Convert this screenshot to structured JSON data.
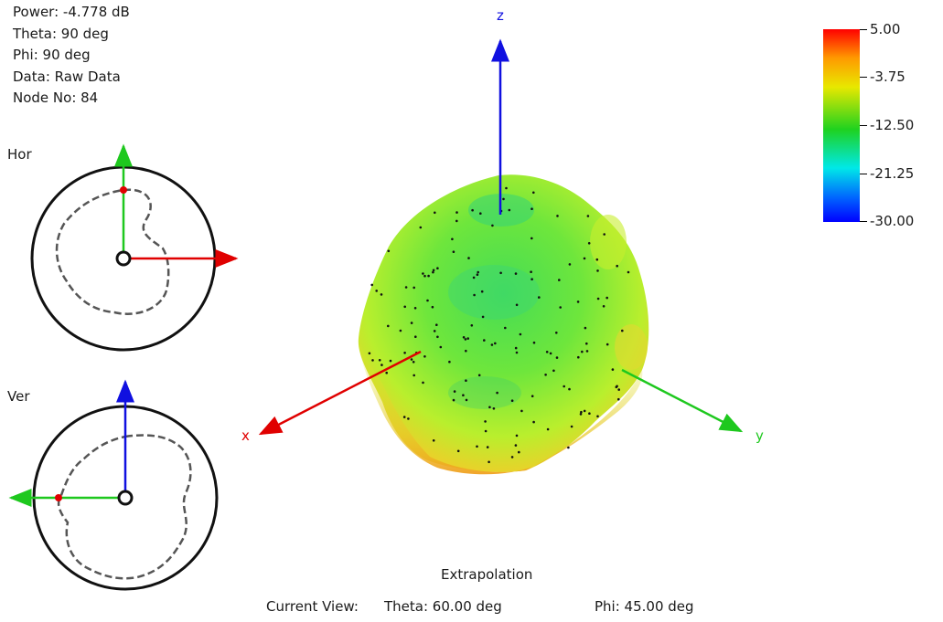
{
  "info": {
    "power": "Power: -4.778 dB",
    "theta": "Theta: 90 deg",
    "phi": "Phi: 90 deg",
    "data": "Data: Raw Data",
    "node": "Node No: 84"
  },
  "hor_label": "Hor",
  "ver_label": "Ver",
  "axes": {
    "x": "x",
    "y": "y",
    "z": "z"
  },
  "colorbar": {
    "labels": [
      "5.00",
      "-3.75",
      "-12.50",
      "-21.25",
      "-30.00"
    ],
    "colors": [
      "#ff0000",
      "#ff9a00",
      "#e8e800",
      "#1fd21f",
      "#00e8e8",
      "#0060ff",
      "#0000ff"
    ]
  },
  "footer": {
    "title": "Extrapolation",
    "current_view": "Current View:",
    "theta": "Theta: 60.00 deg",
    "phi": "Phi: 45.00 deg"
  }
}
